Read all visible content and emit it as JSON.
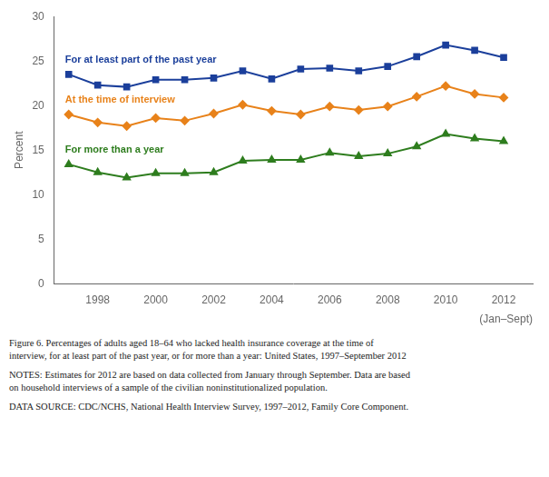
{
  "chart_data": {
    "type": "line",
    "x": [
      1997,
      1998,
      1999,
      2000,
      2001,
      2002,
      2003,
      2004,
      2005,
      2006,
      2007,
      2008,
      2009,
      2010,
      2011,
      2012
    ],
    "series": [
      {
        "name": "For at least part of the past year",
        "color": "#1B3F9B",
        "marker": "square",
        "values": [
          23.5,
          22.3,
          22.1,
          22.9,
          22.9,
          23.1,
          23.9,
          23.0,
          24.1,
          24.2,
          23.9,
          24.4,
          25.5,
          26.8,
          26.2,
          25.4
        ]
      },
      {
        "name": "At the time of interview",
        "color": "#E8821A",
        "marker": "diamond",
        "values": [
          19.0,
          18.1,
          17.7,
          18.6,
          18.3,
          19.1,
          20.1,
          19.4,
          19.0,
          19.9,
          19.5,
          19.9,
          21.0,
          22.2,
          21.3,
          20.9
        ]
      },
      {
        "name": "For more than a year",
        "color": "#2E7D1E",
        "marker": "triangle",
        "values": [
          13.4,
          12.5,
          11.9,
          12.4,
          12.4,
          12.5,
          13.8,
          13.9,
          13.9,
          14.7,
          14.3,
          14.6,
          15.4,
          16.8,
          16.3,
          16.0
        ]
      }
    ],
    "ylabel": "Percent",
    "xlabel": "(Jan–Sept)",
    "xlim": [
      1996.5,
      2013.0
    ],
    "xticks": [
      1998,
      2000,
      2002,
      2004,
      2006,
      2008,
      2010,
      2012
    ],
    "ylim": [
      0,
      30
    ],
    "yticks": [
      0,
      5,
      10,
      15,
      20,
      25,
      30
    ],
    "grid": false,
    "caption": [
      "Figure 6. Percentages of adults aged 18–64 who lacked health insurance coverage at the time of",
      "interview, for at least part of the past year, or for more than a year: United States, 1997–September 2012"
    ],
    "notes": [
      "NOTES: Estimates for 2012 are based on data collected from January through September. Data are based",
      "on household interviews of a sample of the civilian noninstitutionalized population."
    ],
    "source": "DATA SOURCE: CDC/NCHS, National Health Interview Survey, 1997–2012, Family Core Component."
  }
}
